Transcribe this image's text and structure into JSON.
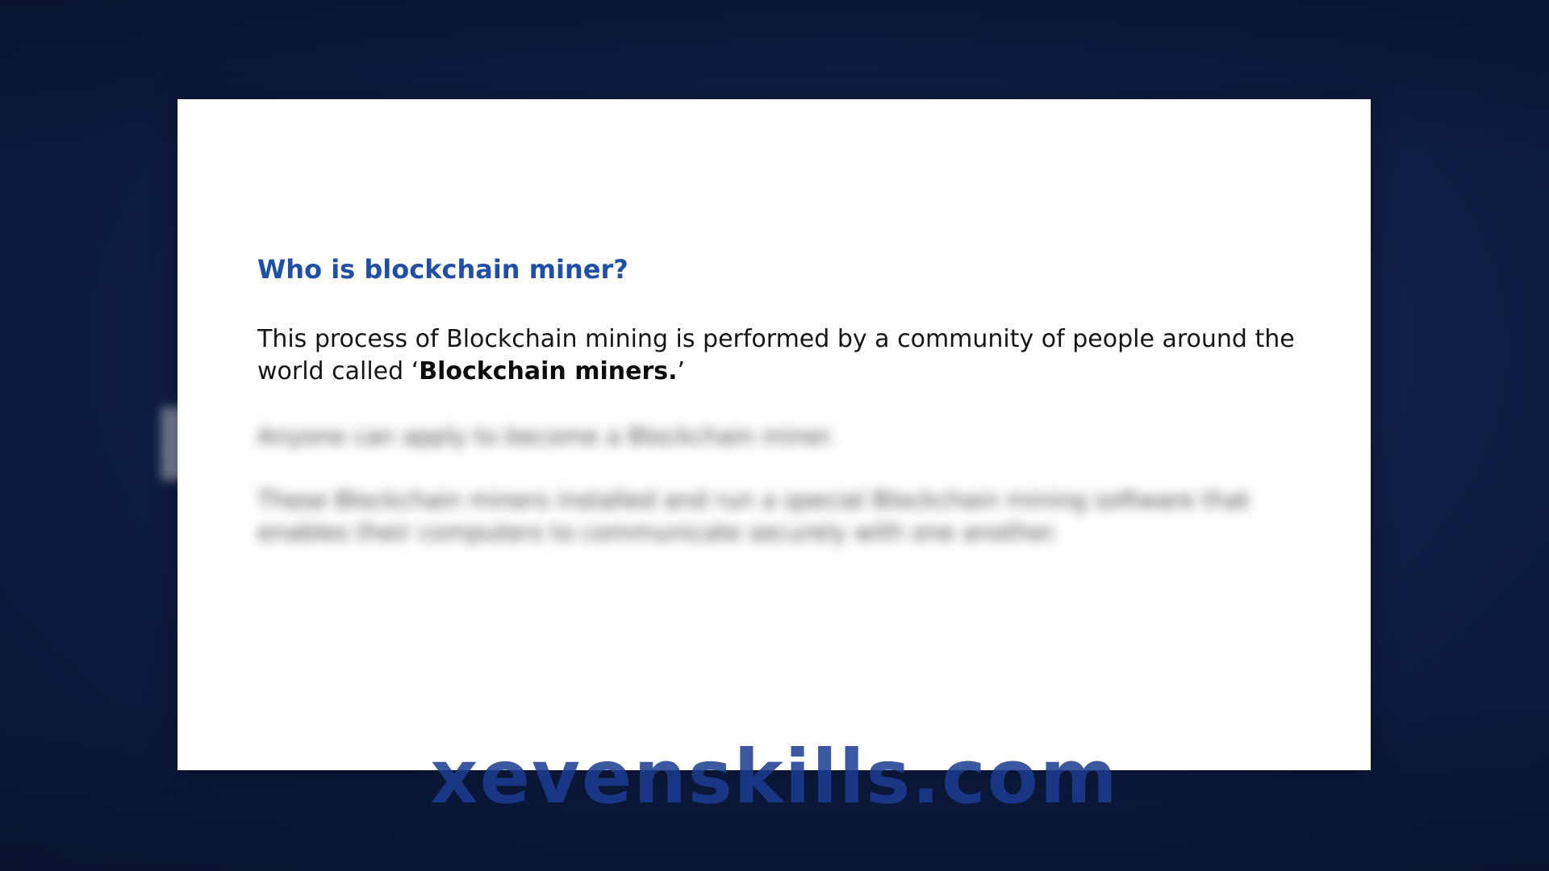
{
  "slide": {
    "title": "Who is blockchain miner?",
    "body_prefix": "This process of Blockchain mining is performed by a community of people around the world called ‘",
    "body_bold": "Blockchain miners.",
    "body_suffix": "’",
    "blurred_line_1": "Anyone can apply to become a Blockchain miner.",
    "blurred_paragraph_2": "These Blockchain miners installed and run a special Blockchain mining software that enables their computers to communicate securely with one another."
  },
  "watermark": {
    "text": "xevenskills.com"
  },
  "colors": {
    "title": "#1f4fa7",
    "background": "#13224b",
    "watermark": "#1b3c91"
  }
}
